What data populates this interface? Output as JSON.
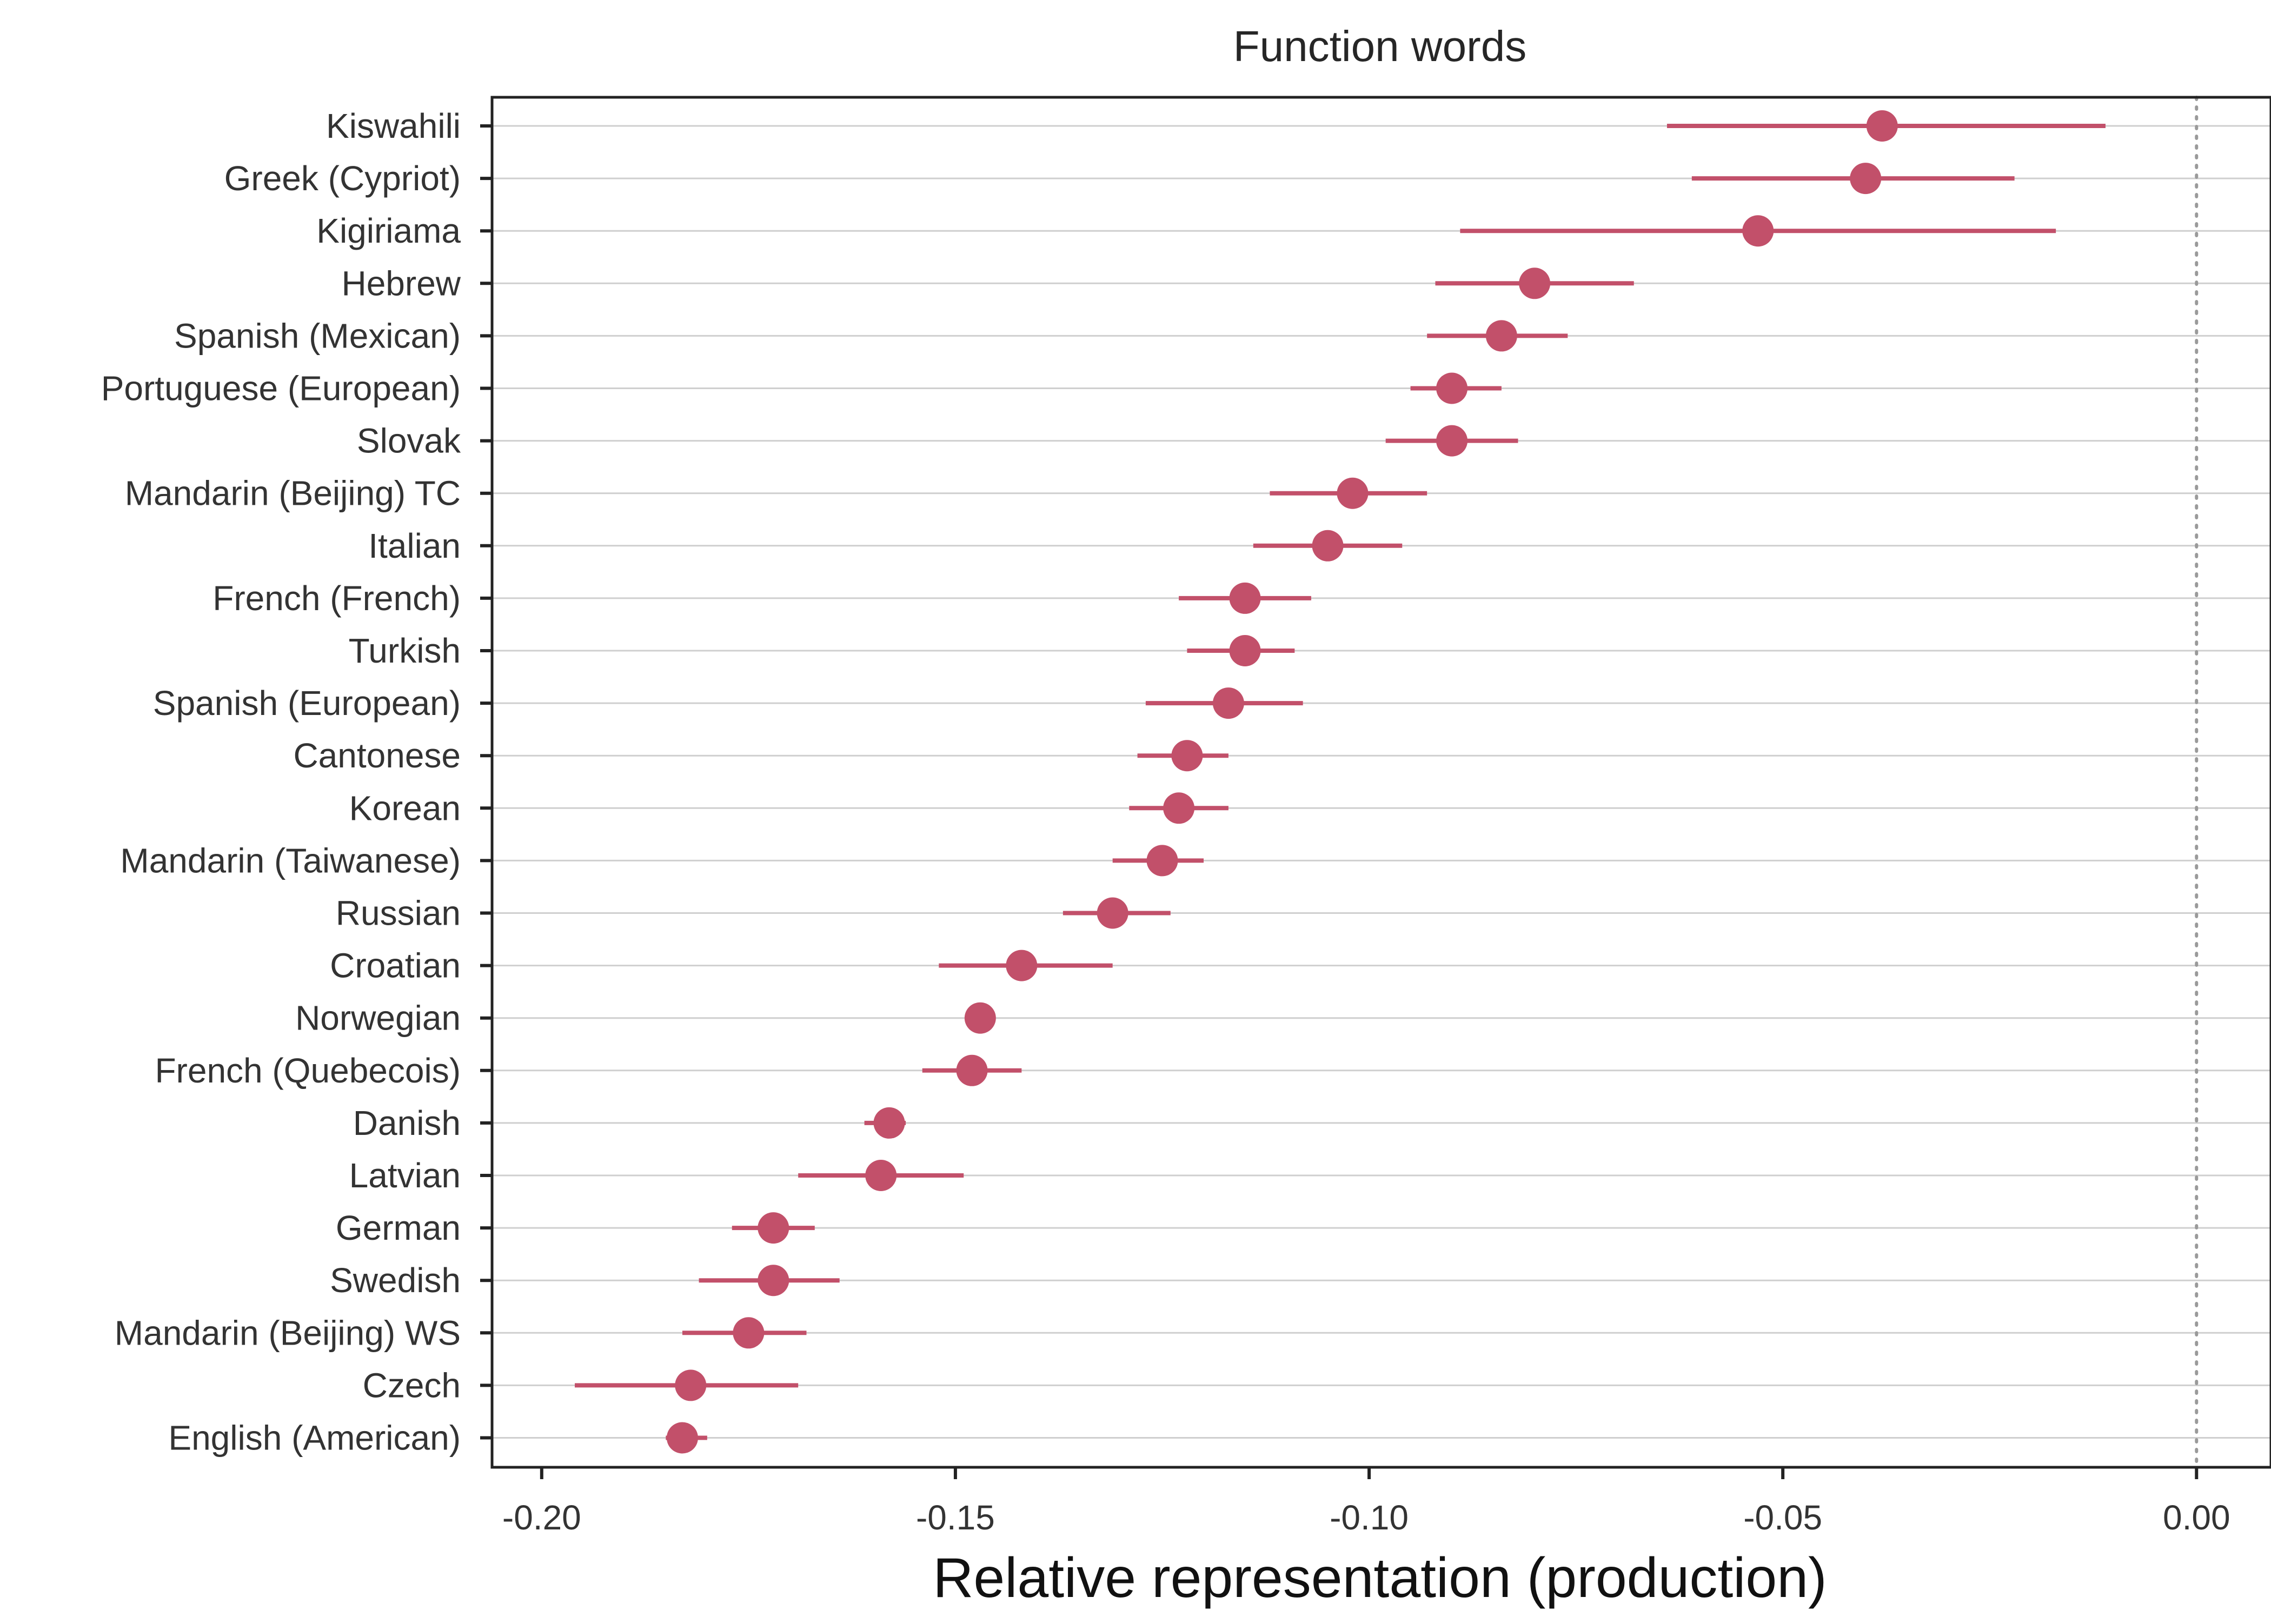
{
  "chart_data": {
    "type": "scatter",
    "subtype": "point-range",
    "title": "Function words",
    "xlabel": "Relative representation (production)",
    "ylabel": "",
    "xlim": [
      -0.206,
      0.009
    ],
    "xticks": [
      -0.2,
      -0.15,
      -0.1,
      -0.05,
      0.0
    ],
    "xtick_labels": [
      "-0.20",
      "-0.15",
      "-0.10",
      "-0.05",
      "0.00"
    ],
    "reference_line": {
      "x": 0.0,
      "style": "dotted"
    },
    "grid": "horizontal",
    "legend": "none",
    "color": "#c2506a",
    "categories": [
      "Kiswahili",
      "Greek (Cypriot)",
      "Kigiriama",
      "Hebrew",
      "Spanish (Mexican)",
      "Portuguese (European)",
      "Slovak",
      "Mandarin (Beijing) TC",
      "Italian",
      "French (French)",
      "Turkish",
      "Spanish (European)",
      "Cantonese",
      "Korean",
      "Mandarin (Taiwanese)",
      "Russian",
      "Croatian",
      "Norwegian",
      "French (Quebecois)",
      "Danish",
      "Latvian",
      "German",
      "Swedish",
      "Mandarin (Beijing) WS",
      "Czech",
      "English (American)"
    ],
    "values": [
      -0.038,
      -0.04,
      -0.053,
      -0.08,
      -0.084,
      -0.09,
      -0.09,
      -0.102,
      -0.105,
      -0.115,
      -0.115,
      -0.117,
      -0.122,
      -0.123,
      -0.125,
      -0.131,
      -0.142,
      -0.147,
      -0.148,
      -0.158,
      -0.159,
      -0.172,
      -0.172,
      -0.175,
      -0.182,
      -0.183
    ],
    "ci_low": [
      -0.064,
      -0.061,
      -0.089,
      -0.092,
      -0.093,
      -0.095,
      -0.098,
      -0.112,
      -0.114,
      -0.123,
      -0.122,
      -0.127,
      -0.128,
      -0.129,
      -0.131,
      -0.137,
      -0.152,
      null,
      -0.154,
      -0.161,
      -0.169,
      -0.177,
      -0.181,
      -0.183,
      -0.196,
      -0.185
    ],
    "ci_high": [
      -0.011,
      -0.022,
      -0.017,
      -0.068,
      -0.076,
      -0.084,
      -0.082,
      -0.093,
      -0.096,
      -0.107,
      -0.109,
      -0.108,
      -0.117,
      -0.117,
      -0.12,
      -0.124,
      -0.131,
      null,
      -0.142,
      -0.156,
      -0.149,
      -0.167,
      -0.164,
      -0.168,
      -0.169,
      -0.18
    ]
  }
}
